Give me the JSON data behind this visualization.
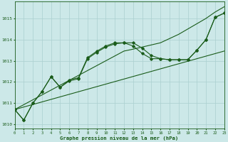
{
  "background_color": "#cce8e8",
  "grid_color": "#aacfcf",
  "line_color": "#1a5c1a",
  "xlabel": "Graphe pression niveau de la mer (hPa)",
  "xlim": [
    0,
    23
  ],
  "ylim": [
    1009.8,
    1015.8
  ],
  "yticks": [
    1010,
    1011,
    1012,
    1013,
    1014,
    1015
  ],
  "xticks": [
    0,
    1,
    2,
    3,
    4,
    5,
    6,
    7,
    8,
    9,
    10,
    11,
    12,
    13,
    14,
    15,
    16,
    17,
    18,
    19,
    20,
    21,
    22,
    23
  ],
  "x": [
    0,
    1,
    2,
    3,
    4,
    5,
    6,
    7,
    8,
    9,
    10,
    11,
    12,
    13,
    14,
    15,
    16,
    17,
    18,
    19,
    20,
    21,
    22,
    23
  ],
  "line_zigzag": [
    1010.7,
    1010.2,
    1011.0,
    1011.55,
    1012.25,
    1011.75,
    1012.05,
    1012.15,
    1013.1,
    1013.4,
    1013.65,
    1013.8,
    1013.85,
    1013.85,
    1013.6,
    1013.25,
    1013.1,
    1013.05,
    1013.05,
    1013.05,
    1013.5,
    1014.0,
    1015.05,
    1015.25
  ],
  "line_hump": [
    1010.7,
    1010.2,
    1011.0,
    1011.55,
    1012.25,
    1011.75,
    1012.1,
    1012.2,
    1013.15,
    1013.45,
    1013.7,
    1013.85,
    1013.85,
    1013.7,
    1013.35,
    1013.1,
    1013.1,
    1013.05,
    1013.05,
    1013.05,
    1013.5,
    1014.0,
    1015.05,
    1015.25
  ],
  "line_trend_low": [
    1010.7,
    1010.82,
    1010.94,
    1011.06,
    1011.18,
    1011.3,
    1011.42,
    1011.54,
    1011.66,
    1011.78,
    1011.9,
    1012.02,
    1012.14,
    1012.26,
    1012.38,
    1012.5,
    1012.62,
    1012.74,
    1012.86,
    1012.98,
    1013.1,
    1013.22,
    1013.34,
    1013.46
  ],
  "line_trend_high": [
    1010.7,
    1010.93,
    1011.16,
    1011.39,
    1011.62,
    1011.85,
    1012.08,
    1012.31,
    1012.54,
    1012.77,
    1013.0,
    1013.23,
    1013.46,
    1013.55,
    1013.65,
    1013.75,
    1013.85,
    1014.05,
    1014.25,
    1014.5,
    1014.75,
    1015.0,
    1015.3,
    1015.55
  ]
}
